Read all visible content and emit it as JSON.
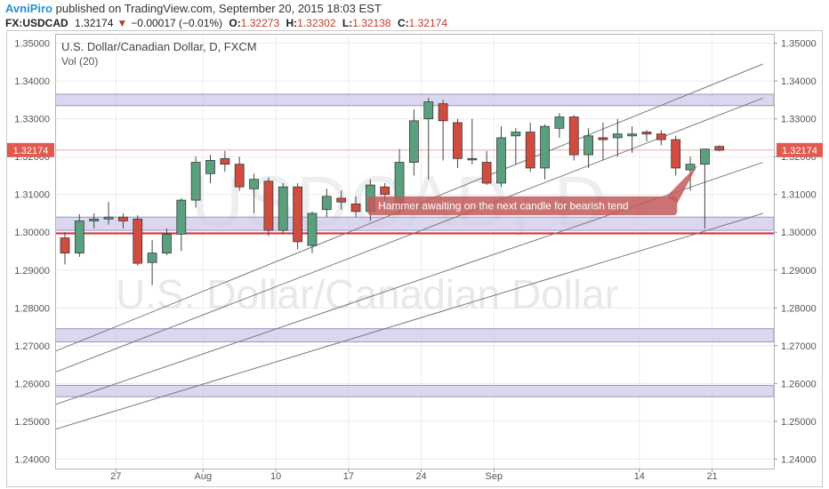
{
  "header": {
    "author": "AvniPiro",
    "published_text": "published on TradingView.com, September 20, 2015 18:03 EST",
    "symbol": "FX:USDCAD",
    "last": "1.32174",
    "change_arrow": "▼",
    "change": "−0.00017 (−0.01%)",
    "open_label": "O:",
    "open": "1.32273",
    "high_label": "H:",
    "high": "1.32302",
    "low_label": "L:",
    "low": "1.32138",
    "close_label": "C:",
    "close": "1.32174"
  },
  "colors": {
    "up": "#5aa07e",
    "down": "#d14b3f",
    "zone_fill": "#cfc9e8",
    "zone_stroke": "#9d94c9",
    "support": "#e0282e",
    "price_label": "#e25a4f",
    "callout": "#c25a5a"
  },
  "chart_data": {
    "type": "candlestick",
    "title": "U.S. Dollar/Canadian Dollar, D, FXCM",
    "indicator": "Vol (20)",
    "watermark_symbol": "USDCAD, D",
    "watermark_name": "U.S. Dollar/Canadian Dollar",
    "y_ticks": [
      "1.35000",
      "1.34000",
      "1.33000",
      "1.32000",
      "1.31000",
      "1.30000",
      "1.29000",
      "1.28000",
      "1.27000",
      "1.26000",
      "1.25000",
      "1.24000"
    ],
    "ylim": [
      1.2375,
      1.3525
    ],
    "x_ticks": [
      {
        "label": "27",
        "bar": 3.5
      },
      {
        "label": "Aug",
        "bar": 9.5
      },
      {
        "label": "10",
        "bar": 14.5
      },
      {
        "label": "17",
        "bar": 19.5
      },
      {
        "label": "24",
        "bar": 24.5
      },
      {
        "label": "Sep",
        "bar": 29.5
      },
      {
        "label": "14",
        "bar": 39.5
      },
      {
        "label": "21",
        "bar": 44.5
      }
    ],
    "bar_count": 48,
    "current_price_label": "1.32174",
    "current_price": 1.32174,
    "candles": [
      [
        1.2985,
        1.3,
        1.2915,
        1.2945
      ],
      [
        1.2945,
        1.3048,
        1.2935,
        1.303
      ],
      [
        1.303,
        1.305,
        1.301,
        1.3035
      ],
      [
        1.3035,
        1.308,
        1.302,
        1.304
      ],
      [
        1.304,
        1.305,
        1.301,
        1.303
      ],
      [
        1.3035,
        1.3045,
        1.2912,
        1.2918
      ],
      [
        1.292,
        1.298,
        1.286,
        1.2945
      ],
      [
        1.2945,
        1.301,
        1.294,
        1.2995
      ],
      [
        1.2995,
        1.309,
        1.295,
        1.3085
      ],
      [
        1.3085,
        1.32,
        1.3065,
        1.3185
      ],
      [
        1.3155,
        1.3205,
        1.313,
        1.319
      ],
      [
        1.3195,
        1.3215,
        1.316,
        1.318
      ],
      [
        1.318,
        1.32,
        1.311,
        1.312
      ],
      [
        1.3115,
        1.3155,
        1.305,
        1.314
      ],
      [
        1.3135,
        1.3145,
        1.299,
        1.3005
      ],
      [
        1.3005,
        1.313,
        1.2995,
        1.312
      ],
      [
        1.312,
        1.313,
        1.2955,
        1.2975
      ],
      [
        1.2965,
        1.3055,
        1.2945,
        1.305
      ],
      [
        1.306,
        1.3115,
        1.304,
        1.3095
      ],
      [
        1.309,
        1.311,
        1.306,
        1.308
      ],
      [
        1.3075,
        1.3095,
        1.304,
        1.3055
      ],
      [
        1.3055,
        1.314,
        1.303,
        1.3125
      ],
      [
        1.312,
        1.313,
        1.308,
        1.31
      ],
      [
        1.3065,
        1.322,
        1.305,
        1.3185
      ],
      [
        1.3185,
        1.3325,
        1.315,
        1.3295
      ],
      [
        1.33,
        1.3355,
        1.314,
        1.3345
      ],
      [
        1.334,
        1.335,
        1.319,
        1.3295
      ],
      [
        1.329,
        1.33,
        1.317,
        1.3195
      ],
      [
        1.3195,
        1.33,
        1.318,
        1.3195
      ],
      [
        1.3185,
        1.3215,
        1.3125,
        1.313
      ],
      [
        1.313,
        1.328,
        1.312,
        1.325
      ],
      [
        1.3255,
        1.3275,
        1.318,
        1.3265
      ],
      [
        1.3265,
        1.329,
        1.316,
        1.317
      ],
      [
        1.317,
        1.3285,
        1.314,
        1.328
      ],
      [
        1.3275,
        1.3315,
        1.325,
        1.3305
      ],
      [
        1.3305,
        1.331,
        1.319,
        1.3205
      ],
      [
        1.3205,
        1.3275,
        1.317,
        1.3255
      ],
      [
        1.325,
        1.329,
        1.319,
        1.3245
      ],
      [
        1.325,
        1.33,
        1.32,
        1.326
      ],
      [
        1.3255,
        1.328,
        1.321,
        1.326
      ],
      [
        1.3265,
        1.327,
        1.324,
        1.326
      ],
      [
        1.326,
        1.327,
        1.323,
        1.3245
      ],
      [
        1.3245,
        1.3255,
        1.315,
        1.317
      ],
      [
        1.3165,
        1.32,
        1.311,
        1.318
      ],
      [
        1.318,
        1.322,
        1.301,
        1.322
      ],
      [
        1.3227,
        1.323,
        1.3214,
        1.3217
      ]
    ],
    "zones": [
      [
        1.3335,
        1.3365
      ],
      [
        1.3005,
        1.304
      ],
      [
        1.271,
        1.2745
      ],
      [
        1.2565,
        1.2595
      ]
    ],
    "support_level": 1.2997,
    "trendlines": [
      {
        "from": [
          -1.0,
          1.268
        ],
        "to": [
          48.0,
          1.3445
        ]
      },
      {
        "from": [
          -1.0,
          1.2625
        ],
        "to": [
          48.0,
          1.3355
        ]
      },
      {
        "from": [
          -1.0,
          1.254
        ],
        "to": [
          48.0,
          1.3185
        ]
      },
      {
        "from": [
          -1.0,
          1.2475
        ],
        "to": [
          48.0,
          1.305
        ]
      }
    ],
    "annotation": {
      "text": "Hammer awaiting on the next candle for bearish tend",
      "bar_from": 20.8,
      "bar_to": 42.1,
      "price_top": 1.3095,
      "price_bottom": 1.3045,
      "pointer_bar": 43.5,
      "pointer_price": 1.3178
    }
  }
}
